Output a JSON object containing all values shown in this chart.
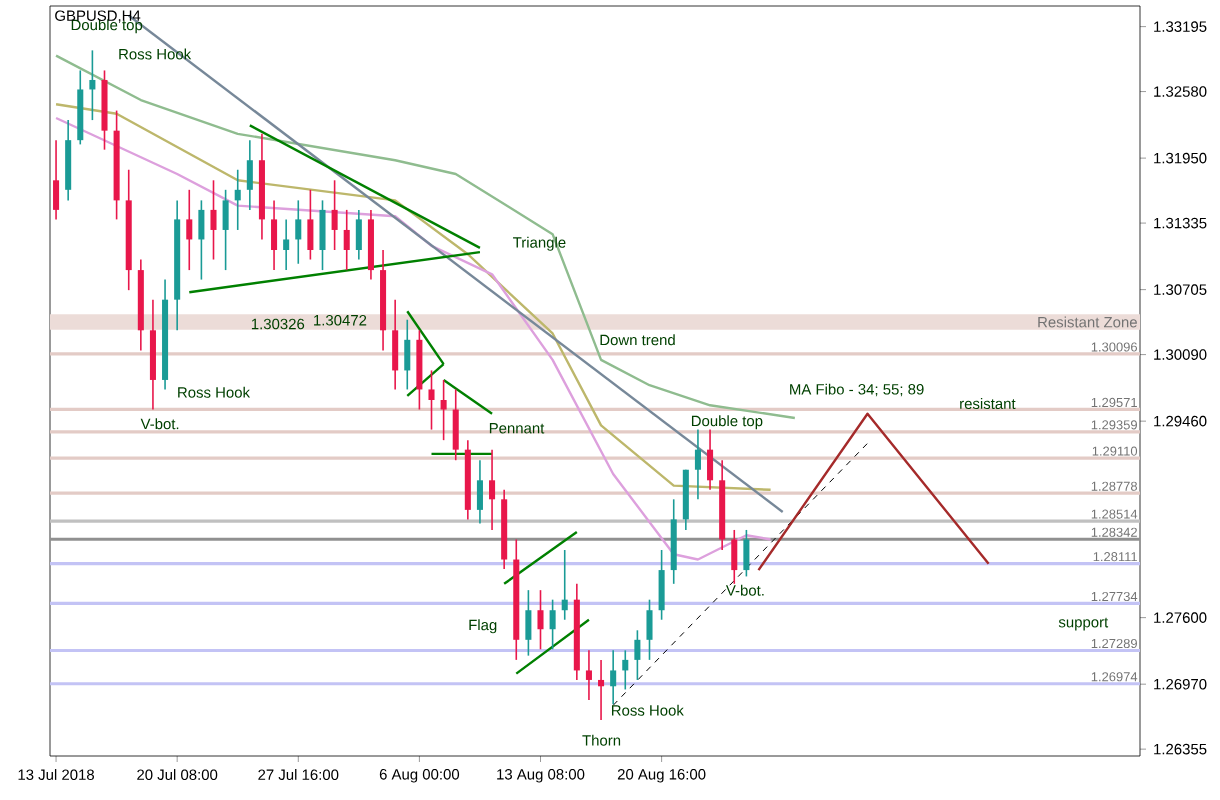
{
  "chart_data": {
    "type": "candlestick",
    "title": "GBPUSD,H4",
    "categories": [
      "13 Jul 2018",
      null,
      null,
      null,
      null,
      null,
      null,
      null,
      null,
      null,
      "20 Jul 08:00",
      null,
      null,
      null,
      null,
      null,
      null,
      null,
      null,
      null,
      "27 Jul 16:00",
      null,
      null,
      null,
      null,
      null,
      null,
      null,
      null,
      null,
      "6 Aug 00:00",
      null,
      null,
      null,
      null,
      null,
      null,
      null,
      null,
      null,
      "13 Aug 08:00",
      null,
      null,
      null,
      null,
      null,
      null,
      null,
      null,
      null,
      "20 Aug 16:00",
      null,
      null,
      null,
      null,
      null,
      null,
      null,
      null,
      null,
      null,
      null,
      null,
      null,
      null,
      null,
      null,
      null,
      null,
      null,
      null,
      null,
      null,
      null,
      null,
      null,
      null,
      null,
      null,
      null,
      null,
      null,
      null,
      null,
      null,
      null,
      null,
      null,
      null,
      null
    ],
    "ohlc": [
      [
        1.3174,
        1.3212,
        1.3137,
        1.3146
      ],
      [
        1.3165,
        1.3231,
        1.3155,
        1.3212
      ],
      [
        1.3212,
        1.3278,
        1.3208,
        1.326
      ],
      [
        1.326,
        1.3297,
        1.3231,
        1.3269
      ],
      [
        1.3269,
        1.3278,
        1.3203,
        1.3221
      ],
      [
        1.3221,
        1.324,
        1.3137,
        1.3155
      ],
      [
        1.3155,
        1.3184,
        1.307,
        1.3089
      ],
      [
        1.3089,
        1.3099,
        1.3013,
        1.3032
      ],
      [
        1.3032,
        1.3061,
        1.2957,
        1.2985
      ],
      [
        1.2985,
        1.308,
        1.2976,
        1.3061
      ],
      [
        1.3061,
        1.3155,
        1.3032,
        1.3137
      ],
      [
        1.3137,
        1.3165,
        1.3089,
        1.3118
      ],
      [
        1.3118,
        1.3155,
        1.308,
        1.3146
      ],
      [
        1.3146,
        1.3174,
        1.3099,
        1.3127
      ],
      [
        1.3127,
        1.3165,
        1.3089,
        1.3155
      ],
      [
        1.3155,
        1.3184,
        1.3127,
        1.3165
      ],
      [
        1.3165,
        1.3212,
        1.3146,
        1.3193
      ],
      [
        1.3193,
        1.3218,
        1.3118,
        1.3137
      ],
      [
        1.3137,
        1.3155,
        1.3089,
        1.3108
      ],
      [
        1.3108,
        1.3137,
        1.3089,
        1.3118
      ],
      [
        1.3118,
        1.3155,
        1.3095,
        1.3137
      ],
      [
        1.3137,
        1.3165,
        1.3099,
        1.3108
      ],
      [
        1.3108,
        1.3155,
        1.3089,
        1.3146
      ],
      [
        1.3146,
        1.3174,
        1.3108,
        1.3127
      ],
      [
        1.3127,
        1.3146,
        1.3089,
        1.3108
      ],
      [
        1.3108,
        1.3146,
        1.3099,
        1.3137
      ],
      [
        1.3137,
        1.3146,
        1.308,
        1.3089
      ],
      [
        1.3089,
        1.3108,
        1.3013,
        1.3032
      ],
      [
        1.3032,
        1.3061,
        1.2976,
        1.2994
      ],
      [
        1.2994,
        1.3042,
        1.2976,
        1.3023
      ],
      [
        1.3023,
        1.3032,
        1.2957,
        1.2976
      ],
      [
        1.2976,
        1.2994,
        1.2938,
        1.2966
      ],
      [
        1.2966,
        1.2985,
        1.2928,
        1.2957
      ],
      [
        1.2957,
        1.2976,
        1.2909,
        1.2919
      ],
      [
        1.2919,
        1.2928,
        1.2853,
        1.2862
      ],
      [
        1.2862,
        1.2909,
        1.2849,
        1.289
      ],
      [
        1.289,
        1.2919,
        1.2843,
        1.2872
      ],
      [
        1.2872,
        1.2881,
        1.2806,
        1.2815
      ],
      [
        1.2815,
        1.2834,
        1.272,
        1.2739
      ],
      [
        1.2739,
        1.2786,
        1.2724,
        1.2767
      ],
      [
        1.2767,
        1.2786,
        1.273,
        1.2749
      ],
      [
        1.2749,
        1.2777,
        1.273,
        1.2767
      ],
      [
        1.2767,
        1.2824,
        1.2758,
        1.2777
      ],
      [
        1.2777,
        1.2792,
        1.2701,
        1.271
      ],
      [
        1.271,
        1.2729,
        1.2682,
        1.2701
      ],
      [
        1.2701,
        1.272,
        1.2663,
        1.2695
      ],
      [
        1.2695,
        1.2729,
        1.2678,
        1.271
      ],
      [
        1.271,
        1.2729,
        1.2692,
        1.272
      ],
      [
        1.272,
        1.2748,
        1.2701,
        1.2739
      ],
      [
        1.2739,
        1.2777,
        1.272,
        1.2767
      ],
      [
        1.2767,
        1.2824,
        1.2758,
        1.2805
      ],
      [
        1.2805,
        1.2872,
        1.2792,
        1.2853
      ],
      [
        1.2853,
        1.29,
        1.2843,
        1.29
      ],
      [
        1.29,
        1.2938,
        1.2872,
        1.2919
      ],
      [
        1.2919,
        1.2938,
        1.2881,
        1.289
      ],
      [
        1.289,
        1.2909,
        1.2824,
        1.2834
      ],
      [
        1.2834,
        1.2843,
        1.2792,
        1.2805
      ],
      [
        1.2805,
        1.2843,
        1.2799,
        1.2834
      ],
      null,
      null,
      null,
      null,
      null,
      null,
      null,
      null,
      null,
      null,
      null,
      null,
      null,
      null,
      null,
      null,
      null,
      null,
      null,
      null,
      null,
      null,
      null,
      null,
      null,
      null,
      null,
      null,
      null,
      null,
      null,
      null
    ],
    "colors": [
      "#e8174b",
      "#1a9b96",
      "#1a9b96",
      "#1a9b96",
      "#e8174b",
      "#e8174b",
      "#e8174b",
      "#e8174b",
      "#e8174b",
      "#1a9b96",
      "#1a9b96",
      "#e8174b",
      "#1a9b96",
      "#e8174b",
      "#1a9b96",
      "#1a9b96",
      "#1a9b96",
      "#e8174b",
      "#e8174b",
      "#1a9b96",
      "#1a9b96",
      "#e8174b",
      "#1a9b96",
      "#e8174b",
      "#e8174b",
      "#1a9b96",
      "#e8174b",
      "#e8174b",
      "#e8174b",
      "#1a9b96",
      "#e8174b",
      "#e8174b",
      "#e8174b",
      "#e8174b",
      "#e8174b",
      "#1a9b96",
      "#e8174b",
      "#e8174b",
      "#e8174b",
      "#1a9b96",
      "#e8174b",
      "#1a9b96",
      "#1a9b96",
      "#e8174b",
      "#e8174b",
      "#e8174b",
      "#1a9b96",
      "#1a9b96",
      "#1a9b96",
      "#1a9b96",
      "#1a9b96",
      "#1a9b96",
      "#1a9b96",
      "#1a9b96",
      "#e8174b",
      "#e8174b",
      "#e8174b",
      "#1a9b96",
      null,
      null,
      null,
      null,
      null,
      null,
      null,
      null,
      null,
      null,
      null,
      null,
      null,
      null,
      null,
      null,
      null,
      null,
      null,
      null,
      null,
      null,
      null,
      null,
      null,
      null,
      null,
      null,
      null,
      null,
      null,
      null
    ],
    "series": [
      {
        "type": "line",
        "color": "#8fbc8f",
        "values": [
          1.3292,
          null,
          null,
          null,
          null,
          null,
          null,
          1.325,
          null,
          null,
          null,
          null,
          null,
          null,
          null,
          1.3218,
          null,
          null,
          null,
          null,
          null,
          null,
          null,
          null,
          null,
          null,
          null,
          null,
          1.3193,
          null,
          null,
          null,
          null,
          1.318,
          null,
          null,
          null,
          null,
          null,
          null,
          null,
          1.3123,
          null,
          null,
          null,
          1.3004,
          null,
          null,
          null,
          1.298,
          null,
          null,
          null,
          null,
          1.2961,
          null,
          null,
          null,
          null,
          null,
          null,
          1.2949,
          null,
          null,
          null,
          null,
          null,
          null,
          null,
          null,
          null,
          null,
          null,
          null,
          null,
          null,
          null,
          null,
          null,
          null,
          null,
          null,
          null,
          null,
          null,
          null,
          null,
          null,
          null,
          null
        ]
      },
      {
        "type": "line",
        "color": "#bdb76b",
        "values": [
          1.3246,
          null,
          null,
          null,
          null,
          1.3237,
          null,
          null,
          null,
          null,
          null,
          null,
          null,
          null,
          null,
          1.3174,
          null,
          null,
          null,
          null,
          null,
          null,
          null,
          null,
          null,
          null,
          null,
          null,
          1.3155,
          null,
          null,
          null,
          null,
          null,
          1.3104,
          null,
          null,
          null,
          null,
          null,
          null,
          1.3029,
          null,
          null,
          null,
          1.2942,
          null,
          null,
          null,
          null,
          null,
          1.2885,
          null,
          null,
          null,
          null,
          null,
          null,
          null,
          1.2881,
          null,
          null,
          null,
          null,
          null,
          null,
          null,
          null,
          null,
          null,
          null,
          null,
          null,
          null,
          null,
          null,
          null,
          null,
          null,
          null,
          null,
          null,
          null,
          null,
          null,
          null,
          null,
          null,
          null,
          null
        ]
      },
      {
        "type": "line",
        "color": "#dda0dd",
        "values": [
          1.3233,
          null,
          null,
          null,
          null,
          null,
          null,
          null,
          null,
          null,
          1.318,
          null,
          null,
          null,
          null,
          1.315,
          null,
          null,
          null,
          null,
          null,
          null,
          null,
          null,
          null,
          null,
          null,
          null,
          1.314,
          null,
          null,
          1.3112,
          null,
          null,
          null,
          null,
          1.3085,
          null,
          null,
          null,
          null,
          1.3004,
          null,
          null,
          null,
          null,
          1.2896,
          null,
          null,
          null,
          null,
          1.282,
          null,
          1.2815,
          null,
          null,
          null,
          1.2838,
          null,
          1.2834,
          null,
          null,
          null,
          null,
          null,
          null,
          null,
          null,
          null,
          null,
          null,
          null,
          null,
          null,
          null,
          null,
          null,
          null,
          null,
          null,
          null,
          null,
          null,
          null,
          null,
          null,
          null,
          null,
          null,
          null
        ]
      },
      {
        "type": "line",
        "color": "#778899",
        "values": [
          null,
          null,
          null,
          null,
          null,
          null,
          1.333,
          null,
          null,
          null,
          null,
          null,
          null,
          null,
          null,
          null,
          null,
          null,
          null,
          null,
          null,
          null,
          null,
          null,
          null,
          null,
          null,
          null,
          null,
          null,
          null,
          null,
          null,
          null,
          null,
          null,
          null,
          null,
          null,
          null,
          null,
          null,
          null,
          null,
          null,
          null,
          null,
          null,
          null,
          null,
          null,
          null,
          null,
          null,
          null,
          null,
          null,
          null,
          null,
          null,
          1.286,
          null,
          null,
          null,
          null,
          null,
          null,
          null,
          null,
          null,
          null,
          null,
          null,
          null,
          null,
          null,
          null,
          null,
          null,
          null,
          null,
          null,
          null,
          null,
          null,
          null,
          null,
          null,
          null,
          null
        ]
      },
      {
        "type": "line",
        "color": "#008000",
        "values": [
          null,
          null,
          null,
          null,
          null,
          null,
          null,
          null,
          null,
          null,
          null,
          null,
          null,
          null,
          null,
          null,
          1.3226,
          null,
          null,
          null,
          null,
          null,
          null,
          null,
          null,
          null,
          null,
          null,
          null,
          null,
          null,
          null,
          null,
          null,
          null,
          1.311,
          null,
          null,
          null,
          null,
          null,
          null,
          null,
          null,
          null,
          null,
          null,
          null,
          null,
          null,
          null,
          null,
          null,
          null,
          null,
          null,
          null,
          null,
          null,
          null,
          null,
          null,
          null,
          null,
          null,
          null,
          null,
          null,
          null,
          null,
          null,
          null,
          null,
          null,
          null,
          null,
          null,
          null,
          null,
          null,
          null,
          null,
          null,
          null,
          null,
          null,
          null,
          null,
          null,
          null
        ]
      },
      {
        "type": "line",
        "color": "#008000",
        "values": [
          null,
          null,
          null,
          null,
          null,
          null,
          null,
          null,
          null,
          null,
          null,
          1.3068,
          null,
          null,
          null,
          null,
          null,
          null,
          null,
          null,
          null,
          null,
          null,
          null,
          null,
          null,
          null,
          null,
          null,
          null,
          null,
          null,
          null,
          null,
          null,
          1.3106,
          null,
          null,
          null,
          null,
          null,
          null,
          null,
          null,
          null,
          null,
          null,
          null,
          null,
          null,
          null,
          null,
          null,
          null,
          null,
          null,
          null,
          null,
          null,
          null,
          null,
          null,
          null,
          null,
          null,
          null,
          null,
          null,
          null,
          null,
          null,
          null,
          null,
          null,
          null,
          null,
          null,
          null,
          null,
          null,
          null,
          null,
          null,
          null,
          null,
          null,
          null,
          null,
          null,
          null
        ]
      },
      {
        "type": "line",
        "color": "#008000",
        "values": [
          null,
          null,
          null,
          null,
          null,
          null,
          null,
          null,
          null,
          null,
          null,
          null,
          null,
          null,
          null,
          null,
          null,
          null,
          null,
          null,
          null,
          null,
          null,
          null,
          null,
          null,
          null,
          null,
          null,
          1.305,
          null,
          null,
          1.3,
          null,
          null,
          null,
          null,
          null,
          null,
          null,
          null,
          null,
          null,
          null,
          null,
          null,
          null,
          null,
          null,
          null,
          null,
          null,
          null,
          null,
          null,
          null,
          null,
          null,
          null,
          null,
          null,
          null,
          null,
          null,
          null,
          null,
          null,
          null,
          null,
          null,
          null,
          null,
          null,
          null,
          null,
          null,
          null,
          null,
          null,
          null,
          null,
          null,
          null,
          null,
          null,
          null,
          null,
          null,
          null,
          null
        ]
      },
      {
        "type": "line",
        "color": "#008000",
        "values": [
          null,
          null,
          null,
          null,
          null,
          null,
          null,
          null,
          null,
          null,
          null,
          null,
          null,
          null,
          null,
          null,
          null,
          null,
          null,
          null,
          null,
          null,
          null,
          null,
          null,
          null,
          null,
          null,
          null,
          1.297,
          null,
          null,
          1.3,
          null,
          null,
          null,
          null,
          null,
          null,
          null,
          null,
          null,
          null,
          null,
          null,
          null,
          null,
          null,
          null,
          null,
          null,
          null,
          null,
          null,
          null,
          null,
          null,
          null,
          null,
          null,
          null,
          null,
          null,
          null,
          null,
          null,
          null,
          null,
          null,
          null,
          null,
          null,
          null,
          null,
          null,
          null,
          null,
          null,
          null,
          null,
          null,
          null,
          null,
          null,
          null,
          null,
          null,
          null,
          null,
          null
        ]
      },
      {
        "type": "line",
        "color": "#008000",
        "values": [
          null,
          null,
          null,
          null,
          null,
          null,
          null,
          null,
          null,
          null,
          null,
          null,
          null,
          null,
          null,
          null,
          null,
          null,
          null,
          null,
          null,
          null,
          null,
          null,
          null,
          null,
          null,
          null,
          null,
          null,
          null,
          null,
          1.2985,
          null,
          null,
          null,
          1.2953,
          null,
          null,
          null,
          null,
          null,
          null,
          null,
          null,
          null,
          null,
          null,
          null,
          null,
          null,
          null,
          null,
          null,
          null,
          null,
          null,
          null,
          null,
          null,
          null,
          null,
          null,
          null,
          null,
          null,
          null,
          null,
          null,
          null,
          null,
          null,
          null,
          null,
          null,
          null,
          null,
          null,
          null,
          null,
          null,
          null,
          null,
          null,
          null,
          null,
          null,
          null,
          null,
          null
        ]
      },
      {
        "type": "line",
        "color": "#008000",
        "values": [
          null,
          null,
          null,
          null,
          null,
          null,
          null,
          null,
          null,
          null,
          null,
          null,
          null,
          null,
          null,
          null,
          null,
          null,
          null,
          null,
          null,
          null,
          null,
          null,
          null,
          null,
          null,
          null,
          null,
          null,
          null,
          1.2915,
          null,
          null,
          null,
          null,
          1.2915,
          null,
          null,
          null,
          null,
          null,
          null,
          null,
          null,
          null,
          null,
          null,
          null,
          null,
          null,
          null,
          null,
          null,
          null,
          null,
          null,
          null,
          null,
          null,
          null,
          null,
          null,
          null,
          null,
          null,
          null,
          null,
          null,
          null,
          null,
          null,
          null,
          null,
          null,
          null,
          null,
          null,
          null,
          null,
          null,
          null,
          null,
          null,
          null,
          null,
          null,
          null,
          null,
          null
        ]
      },
      {
        "type": "line",
        "color": "#008000",
        "values": [
          null,
          null,
          null,
          null,
          null,
          null,
          null,
          null,
          null,
          null,
          null,
          null,
          null,
          null,
          null,
          null,
          null,
          null,
          null,
          null,
          null,
          null,
          null,
          null,
          null,
          null,
          null,
          null,
          null,
          null,
          null,
          null,
          null,
          null,
          null,
          null,
          null,
          1.2792,
          null,
          null,
          null,
          null,
          null,
          1.2841,
          null,
          null,
          null,
          null,
          null,
          null,
          null,
          null,
          null,
          null,
          null,
          null,
          null,
          null,
          null,
          null,
          null,
          null,
          null,
          null,
          null,
          null,
          null,
          null,
          null,
          null,
          null,
          null,
          null,
          null,
          null,
          null,
          null,
          null,
          null,
          null,
          null,
          null,
          null,
          null,
          null,
          null,
          null,
          null,
          null,
          null
        ]
      },
      {
        "type": "line",
        "color": "#008000",
        "values": [
          null,
          null,
          null,
          null,
          null,
          null,
          null,
          null,
          null,
          null,
          null,
          null,
          null,
          null,
          null,
          null,
          null,
          null,
          null,
          null,
          null,
          null,
          null,
          null,
          null,
          null,
          null,
          null,
          null,
          null,
          null,
          null,
          null,
          null,
          null,
          null,
          null,
          null,
          1.2707,
          null,
          null,
          null,
          null,
          null,
          1.2758,
          null,
          null,
          null,
          null,
          null,
          null,
          null,
          null,
          null,
          null,
          null,
          null,
          null,
          null,
          null,
          null,
          null,
          null,
          null,
          null,
          null,
          null,
          null,
          null,
          null,
          null,
          null,
          null,
          null,
          null,
          null,
          null,
          null,
          null,
          null,
          null,
          null,
          null,
          null,
          null,
          null,
          null,
          null,
          null,
          null
        ]
      },
      {
        "type": "line",
        "color": "#000000",
        "line_style": "dashed",
        "values": [
          null,
          null,
          null,
          null,
          null,
          null,
          null,
          null,
          null,
          null,
          null,
          null,
          null,
          null,
          null,
          null,
          null,
          null,
          null,
          null,
          null,
          null,
          null,
          null,
          null,
          null,
          null,
          null,
          null,
          null,
          null,
          null,
          null,
          null,
          null,
          null,
          null,
          null,
          null,
          null,
          null,
          null,
          null,
          null,
          null,
          null,
          1.2677,
          null,
          null,
          null,
          null,
          null,
          null,
          null,
          null,
          null,
          null,
          null,
          null,
          null,
          null,
          null,
          null,
          null,
          null,
          null,
          null,
          1.2925,
          null,
          null,
          null,
          null,
          null,
          null,
          null,
          null,
          null,
          null,
          null,
          null,
          null,
          null,
          null,
          null,
          null,
          null,
          null,
          null,
          null,
          null
        ]
      },
      {
        "type": "line",
        "color": "#a52a2a",
        "values": [
          null,
          null,
          null,
          null,
          null,
          null,
          null,
          null,
          null,
          null,
          null,
          null,
          null,
          null,
          null,
          null,
          null,
          null,
          null,
          null,
          null,
          null,
          null,
          null,
          null,
          null,
          null,
          null,
          null,
          null,
          null,
          null,
          null,
          null,
          null,
          null,
          null,
          null,
          null,
          null,
          null,
          null,
          null,
          null,
          null,
          null,
          null,
          null,
          null,
          null,
          null,
          null,
          null,
          null,
          null,
          null,
          null,
          null,
          1.2805,
          null,
          null,
          null,
          null,
          null,
          null,
          null,
          null,
          1.2953,
          null,
          null,
          null,
          null,
          null,
          null,
          null,
          null,
          null,
          1.2811,
          null,
          null,
          null,
          null,
          null,
          null,
          null,
          null,
          null,
          null,
          null,
          null
        ]
      }
    ],
    "ylim": [
      1.2629,
      1.3339
    ],
    "yticks": [
      1.33195,
      {
        "value": 1.3258,
        "label": "1.32580"
      },
      {
        "value": 1.3195,
        "label": "1.31950"
      },
      1.31335,
      1.30705,
      {
        "value": 1.3009,
        "label": "1.30090"
      },
      {
        "value": 1.2946,
        "label": "1.29460"
      },
      {
        "value": 1.276,
        "label": "1.27600"
      },
      {
        "value": 1.2697,
        "label": "1.26970"
      },
      1.26355
    ],
    "bands": [
      {
        "axis": "y",
        "from": 1.30326,
        "to": 1.30472,
        "label": "Resistant Zone",
        "color": "#ecdcd8"
      }
    ],
    "ref_lines": [
      {
        "axis": "y",
        "value": 1.30096,
        "label": "1.30096",
        "color": "#e3cbc6"
      },
      {
        "axis": "y",
        "value": 1.29571,
        "label": "1.29571",
        "color": "#e3cbc6"
      },
      {
        "axis": "y",
        "value": 1.29359,
        "label": "1.29359",
        "color": "#e3cbc6"
      },
      {
        "axis": "y",
        "value": 1.2911,
        "label": "1.29110",
        "color": "#e3cbc6"
      },
      {
        "axis": "y",
        "value": 1.28778,
        "label": "1.28778",
        "color": "#e3cbc6"
      },
      {
        "axis": "y",
        "value": 1.28514,
        "label": "1.28514",
        "color": "#c0c0c0"
      },
      {
        "axis": "y",
        "value": 1.28342,
        "label": "1.28342",
        "color": "#909090"
      },
      {
        "axis": "y",
        "value": 1.28111,
        "label": "1.28111",
        "color": "#c3c3f5"
      },
      {
        "axis": "y",
        "value": 1.27734,
        "label": "1.27734",
        "color": "#c3c3f5"
      },
      {
        "axis": "y",
        "value": 1.27289,
        "label": "1.27289",
        "color": "#c3c3f5"
      },
      {
        "axis": "y",
        "value": 1.26974,
        "label": "1.26974",
        "color": "#c3c3f5"
      }
    ],
    "annotations": [
      "Double top",
      "Ross Hook",
      "V-bot.",
      "Ross Hook",
      "Triangle",
      "1.30326",
      "1.30472",
      "Down trend",
      "Pennant",
      "Double top",
      "MA Fibo - 34; 55; 89",
      "resistant",
      "V-bot.",
      "Flag",
      "support",
      "Ross Hook",
      "Thorn"
    ]
  }
}
